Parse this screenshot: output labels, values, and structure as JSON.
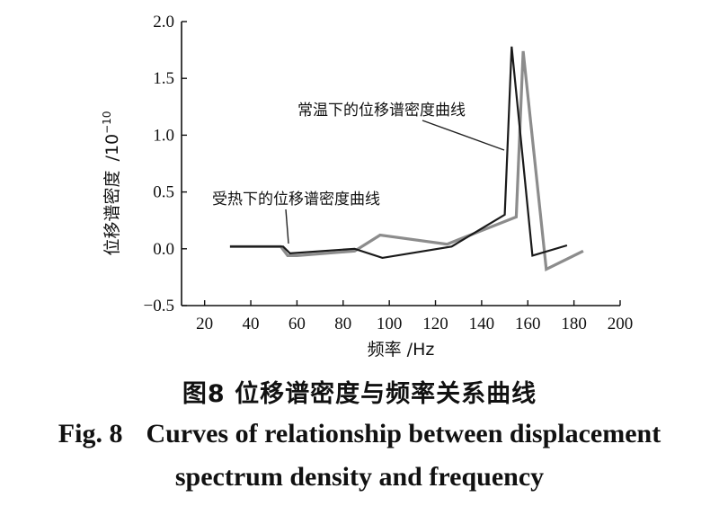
{
  "chart_data": {
    "type": "line",
    "x_label": "频率 /Hz",
    "y_label": "位移谱密度",
    "y_unit_prefix": "/10",
    "y_unit_exponent": "−10",
    "xlim": [
      10,
      200
    ],
    "ylim": [
      -0.5,
      2.0
    ],
    "x_ticks": [
      20,
      40,
      60,
      80,
      100,
      120,
      140,
      160,
      180,
      200
    ],
    "y_ticks": [
      -0.5,
      0.0,
      0.5,
      1.0,
      1.5,
      2.0
    ],
    "y_tick_labels": [
      "−0.5",
      "0.0",
      "0.5",
      "1.0",
      "1.5",
      "2.0"
    ],
    "grid": false,
    "series": [
      {
        "name": "常温下的位移谱密度曲线",
        "color": "#1a1a1a",
        "x": [
          31,
          54,
          57,
          85,
          97,
          127,
          150,
          153,
          162,
          177
        ],
        "y": [
          0.02,
          0.02,
          -0.04,
          0.0,
          -0.08,
          0.02,
          0.3,
          1.78,
          -0.06,
          0.03
        ]
      },
      {
        "name": "受热下的位移谱密度曲线",
        "color": "#8c8c8c",
        "x": [
          31,
          53,
          56,
          60,
          85,
          96,
          125,
          155,
          158,
          168,
          184
        ],
        "y": [
          0.02,
          0.02,
          -0.06,
          -0.06,
          -0.02,
          0.12,
          0.04,
          0.28,
          1.74,
          -0.18,
          -0.02
        ]
      }
    ]
  },
  "caption": {
    "cn": "图8  位移谱密度与频率关系曲线",
    "en_prefix": "Fig. 8",
    "en_line1": "Curves of relationship between displacement",
    "en_line2": "spectrum density and frequency"
  }
}
